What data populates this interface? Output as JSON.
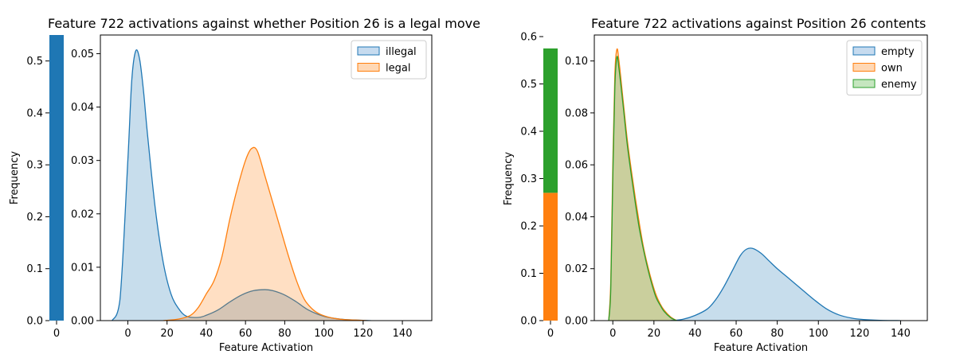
{
  "chart_data": [
    {
      "type": "area",
      "title": "Feature 722 activations against whether Position 26 is a legal move",
      "xlabel": "Feature Activation",
      "ylabel": "Frequency",
      "bar_panel": {
        "type": "bar",
        "categories": [
          "0"
        ],
        "yticks": [
          "0.0",
          "0.1",
          "0.2",
          "0.3",
          "0.4",
          "0.5"
        ],
        "ylim": [
          0,
          0.55
        ],
        "segments": [
          {
            "value": 0.55,
            "color": "#1f77b4"
          }
        ]
      },
      "xticks": [
        "0",
        "20",
        "40",
        "60",
        "80",
        "100",
        "120",
        "140"
      ],
      "yticks": [
        "0.00",
        "0.01",
        "0.02",
        "0.03",
        "0.04",
        "0.05"
      ],
      "xlim": [
        -14,
        155
      ],
      "ylim": [
        0,
        0.0535
      ],
      "legend_position": "top-right",
      "series": [
        {
          "name": "illegal",
          "color": "#1f77b4",
          "fill_color": "#c6dbef",
          "x": [
            -8,
            -4,
            0,
            2,
            4,
            6,
            8,
            10,
            14,
            18,
            22,
            26,
            30,
            36,
            40,
            46,
            52,
            58,
            64,
            70,
            74,
            80,
            86,
            92,
            100,
            108,
            116,
            124
          ],
          "y": [
            0.0,
            0.004,
            0.03,
            0.045,
            0.0505,
            0.049,
            0.043,
            0.035,
            0.021,
            0.011,
            0.005,
            0.0022,
            0.0008,
            0.0006,
            0.001,
            0.002,
            0.0035,
            0.0048,
            0.0056,
            0.0058,
            0.0056,
            0.0048,
            0.0035,
            0.002,
            0.0008,
            0.0003,
            0.0001,
            0.0
          ]
        },
        {
          "name": "legal",
          "color": "#ff7f0e",
          "fill_color": "#ffd8b5",
          "x": [
            18,
            26,
            32,
            36,
            40,
            44,
            48,
            52,
            56,
            60,
            63,
            66,
            70,
            74,
            78,
            82,
            86,
            90,
            94,
            98,
            104,
            110,
            116,
            122
          ],
          "y": [
            0.0,
            0.0003,
            0.001,
            0.0025,
            0.005,
            0.0075,
            0.012,
            0.019,
            0.025,
            0.03,
            0.0322,
            0.0318,
            0.027,
            0.022,
            0.017,
            0.012,
            0.0075,
            0.004,
            0.0022,
            0.0012,
            0.0005,
            0.0002,
            0.0001,
            0.0
          ]
        }
      ]
    },
    {
      "type": "area",
      "title": "Feature 722 activations against Position 26 contents",
      "xlabel": "Feature Activation",
      "ylabel": "Frequency",
      "bar_panel": {
        "type": "bar",
        "categories": [
          "0"
        ],
        "yticks": [
          "0.0",
          "0.1",
          "0.2",
          "0.3",
          "0.4",
          "0.5",
          "0.6"
        ],
        "ylim": [
          0,
          0.6
        ],
        "segments": [
          {
            "value": 0.27,
            "color": "#ff7f0e"
          },
          {
            "value": 0.305,
            "color": "#2ca02c"
          }
        ]
      },
      "xticks": [
        "0",
        "20",
        "40",
        "60",
        "80",
        "100",
        "120",
        "140"
      ],
      "yticks": [
        "0.00",
        "0.02",
        "0.04",
        "0.06",
        "0.08",
        "0.10"
      ],
      "xlim": [
        -9,
        153
      ],
      "ylim": [
        0,
        0.11
      ],
      "legend_position": "top-right",
      "series": [
        {
          "name": "empty",
          "color": "#1f77b4",
          "fill_color": "#c6dbef",
          "x": [
            28,
            34,
            40,
            46,
            50,
            54,
            58,
            62,
            65,
            68,
            72,
            76,
            80,
            86,
            92,
            98,
            104,
            110,
            116,
            122,
            130,
            140
          ],
          "y": [
            0.0,
            0.0005,
            0.002,
            0.0045,
            0.008,
            0.013,
            0.019,
            0.025,
            0.0275,
            0.0278,
            0.026,
            0.023,
            0.02,
            0.016,
            0.012,
            0.008,
            0.0045,
            0.0022,
            0.001,
            0.0004,
            0.0001,
            0.0
          ]
        },
        {
          "name": "own",
          "color": "#ff7f0e",
          "fill_color": "#ffd8b5",
          "x": [
            -2,
            -1,
            0,
            1,
            2,
            3,
            5,
            7,
            9,
            11,
            13,
            15,
            17,
            19,
            21,
            23,
            25,
            28,
            31
          ],
          "y": [
            0.0,
            0.015,
            0.06,
            0.095,
            0.1045,
            0.1,
            0.085,
            0.07,
            0.058,
            0.047,
            0.037,
            0.028,
            0.021,
            0.015,
            0.01,
            0.0065,
            0.004,
            0.0015,
            0.0
          ]
        },
        {
          "name": "enemy",
          "color": "#2ca02c",
          "fill_color": "#c5e6bf",
          "x": [
            -2,
            -1,
            0,
            1,
            2,
            3,
            5,
            7,
            9,
            11,
            13,
            15,
            17,
            19,
            21,
            23,
            25,
            28,
            31
          ],
          "y": [
            0.0,
            0.012,
            0.055,
            0.09,
            0.1015,
            0.097,
            0.083,
            0.068,
            0.056,
            0.045,
            0.035,
            0.027,
            0.02,
            0.014,
            0.009,
            0.006,
            0.0035,
            0.0012,
            0.0
          ]
        }
      ]
    }
  ]
}
